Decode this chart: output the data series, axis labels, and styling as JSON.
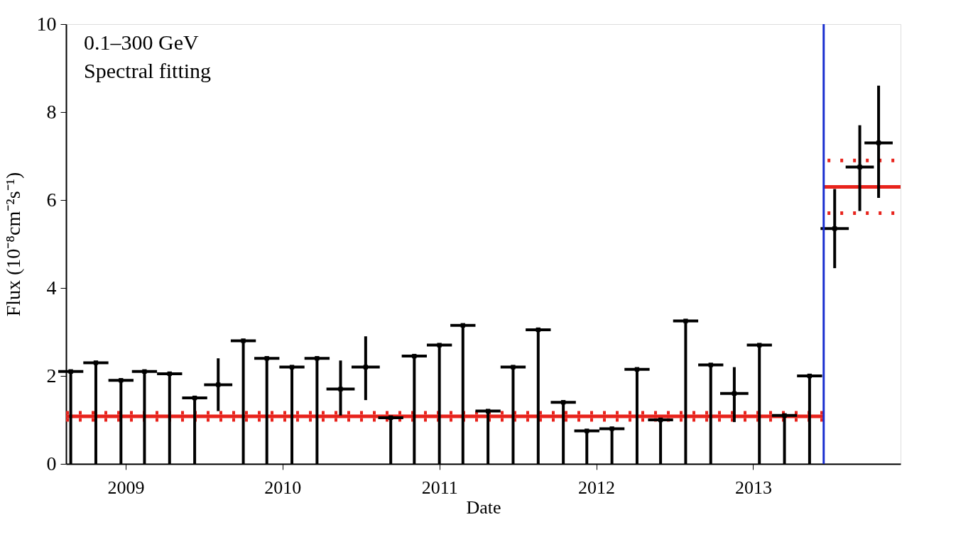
{
  "chart_data": {
    "type": "scatter",
    "xlabel": "Date",
    "ylabel": "Flux (10⁻⁸cm⁻²s⁻¹)",
    "annotations": [
      "0.1–300 GeV",
      "Spectral fitting"
    ],
    "xlim": [
      2008.62,
      2013.94
    ],
    "xticks": [
      2009,
      2010,
      2011,
      2012,
      2013
    ],
    "ylim": [
      0,
      10
    ],
    "yticks": [
      0,
      2,
      4,
      6,
      8,
      10
    ],
    "grid": false,
    "ref_lines": [
      {
        "axis": "x",
        "value": 2013.45,
        "color": "#1a2fd0"
      }
    ],
    "series": [
      {
        "color": "#000000",
        "x": [
          2008.65,
          2008.81,
          2008.97,
          2009.12,
          2009.28,
          2009.44,
          2009.75,
          2009.9,
          2010.06,
          2010.22,
          2010.69,
          2010.84,
          2011.0,
          2011.15,
          2011.31,
          2011.47,
          2011.63,
          2011.79,
          2011.94,
          2012.1,
          2012.26,
          2012.41,
          2012.57,
          2012.73,
          2013.04,
          2013.2,
          2013.36
        ],
        "values": [
          2.1,
          2.3,
          1.9,
          2.1,
          2.05,
          1.5,
          2.8,
          2.4,
          2.2,
          2.4,
          1.05,
          2.45,
          2.7,
          3.15,
          1.2,
          2.2,
          3.05,
          1.4,
          0.75,
          0.8,
          2.15,
          1.0,
          3.25,
          2.25,
          2.7,
          1.1,
          2.0
        ],
        "errors": [
          [
            0,
            2.1
          ],
          [
            0,
            2.3
          ],
          [
            0,
            1.9
          ],
          [
            0,
            2.1
          ],
          [
            0,
            2.05
          ],
          [
            0,
            1.5
          ],
          [
            0,
            2.8
          ],
          [
            0,
            2.4
          ],
          [
            0,
            2.2
          ],
          [
            0,
            2.4
          ],
          [
            0,
            1.05
          ],
          [
            0,
            2.45
          ],
          [
            0,
            2.7
          ],
          [
            0,
            3.15
          ],
          [
            0,
            1.2
          ],
          [
            0,
            2.2
          ],
          [
            0,
            3.05
          ],
          [
            0,
            1.4
          ],
          [
            0,
            0.75
          ],
          [
            0,
            0.8
          ],
          [
            0,
            2.15
          ],
          [
            0,
            1.0
          ],
          [
            0,
            3.25
          ],
          [
            0,
            2.25
          ],
          [
            0,
            2.7
          ],
          [
            0,
            1.1
          ],
          [
            0,
            2.0
          ]
        ],
        "xerrors": [
          0.08,
          0.08,
          0.08,
          0.08,
          0.08,
          0.08,
          0.08,
          0.08,
          0.08,
          0.08,
          0.08,
          0.08,
          0.08,
          0.08,
          0.08,
          0.08,
          0.08,
          0.08,
          0.08,
          0.08,
          0.08,
          0.08,
          0.08,
          0.08,
          0.08,
          0.08,
          0.08
        ]
      },
      {
        "color": "#000000",
        "x": [
          2009.59,
          2010.37,
          2010.53,
          2012.88,
          2013.52,
          2013.68,
          2013.8
        ],
        "values": [
          1.8,
          1.7,
          2.2,
          1.6,
          5.35,
          6.75,
          7.3
        ],
        "errors": [
          [
            1.2,
            2.4
          ],
          [
            1.1,
            2.35
          ],
          [
            1.45,
            2.9
          ],
          [
            0.95,
            2.2
          ],
          [
            4.45,
            6.25
          ],
          [
            5.75,
            7.7
          ],
          [
            6.05,
            8.6
          ]
        ],
        "xerrors": [
          0.09,
          0.09,
          0.09,
          0.09,
          0.09,
          0.09,
          0.09
        ]
      },
      {
        "type": "line",
        "color": "#e8231c",
        "line_style": "solid",
        "x": [
          2008.62,
          2013.45
        ],
        "values": [
          1.08,
          1.08
        ]
      },
      {
        "type": "line",
        "color": "#e8231c",
        "line_style": "dotted",
        "x": [
          2008.62,
          2013.45
        ],
        "values": [
          1.16,
          1.16
        ]
      },
      {
        "type": "line",
        "color": "#e8231c",
        "line_style": "dotted",
        "x": [
          2008.62,
          2013.45
        ],
        "values": [
          1.0,
          1.0
        ]
      },
      {
        "type": "line",
        "color": "#e8231c",
        "line_style": "solid",
        "x": [
          2013.45,
          2013.94
        ],
        "values": [
          6.3,
          6.3
        ]
      },
      {
        "type": "line",
        "color": "#e8231c",
        "line_style": "dotted",
        "x": [
          2013.45,
          2013.9
        ],
        "values": [
          6.9,
          6.9
        ]
      },
      {
        "type": "line",
        "color": "#e8231c",
        "line_style": "dotted",
        "x": [
          2013.45,
          2013.9
        ],
        "values": [
          5.7,
          5.7
        ]
      }
    ]
  }
}
